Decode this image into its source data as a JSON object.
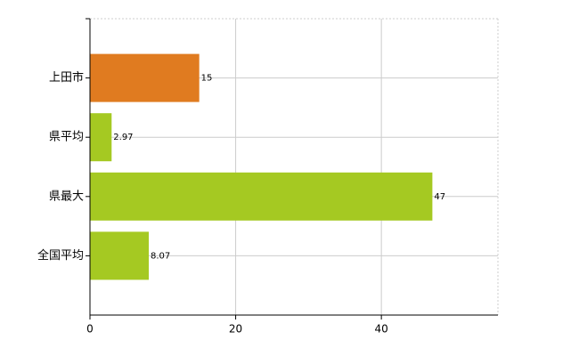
{
  "chart_data": {
    "type": "bar",
    "orientation": "horizontal",
    "categories": [
      "上田市",
      "県平均",
      "県最大",
      "全国平均"
    ],
    "values": [
      15,
      2.97,
      47,
      8.07
    ],
    "colors": [
      "#e07b20",
      "#a5c922",
      "#a5c922",
      "#a5c922"
    ],
    "xlim": [
      0,
      56
    ],
    "xticks": [
      0,
      20,
      40
    ],
    "grid": true
  }
}
